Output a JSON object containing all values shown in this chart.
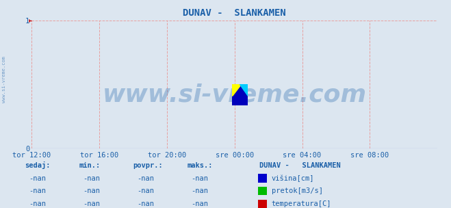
{
  "title": "DUNAV -  SLANKAMEN",
  "title_color": "#1a5fa8",
  "bg_color": "#dce6f0",
  "plot_bg_color": "#dce6f0",
  "xlim": [
    0,
    1
  ],
  "ylim": [
    0,
    1
  ],
  "yticks": [
    0,
    1
  ],
  "yticklabels": [
    "0",
    "1"
  ],
  "x_tick_labels": [
    "tor 12:00",
    "tor 16:00",
    "tor 20:00",
    "sre 00:00",
    "sre 04:00",
    "sre 08:00"
  ],
  "x_tick_positions": [
    0.0,
    0.1667,
    0.3333,
    0.5,
    0.6667,
    0.8333
  ],
  "grid_color": "#e8a0a0",
  "grid_linestyle": "--",
  "axis_color": "#cc0000",
  "watermark_text": "www.si-vreme.com",
  "watermark_color": "#1a5fa8",
  "watermark_alpha": 0.3,
  "watermark_fontsize": 26,
  "side_text": "www.si-vreme.com",
  "side_color": "#1a5fa8",
  "legend_title": "DUNAV -   SLANKAMEN",
  "legend_title_color": "#1a5fa8",
  "legend_items": [
    {
      "label": "višina[cm]",
      "color": "#0000cc"
    },
    {
      "label": "pretok[m3/s]",
      "color": "#00bb00"
    },
    {
      "label": "temperatura[C]",
      "color": "#cc0000"
    }
  ],
  "stats_headers": [
    "sedaj:",
    "min.:",
    "povpr.:",
    "maks.:"
  ],
  "stats_values": [
    "-nan",
    "-nan",
    "-nan",
    "-nan"
  ],
  "stats_color": "#1a5fa8",
  "tick_color": "#1a5fa8",
  "tick_fontsize": 7.5,
  "title_fontsize": 10
}
